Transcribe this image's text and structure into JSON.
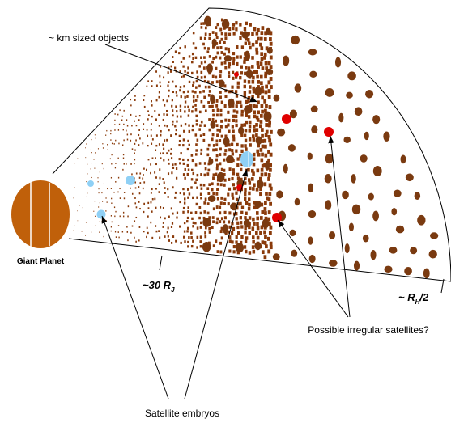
{
  "labels": {
    "km_objects": "~ km sized objects",
    "planet": "Giant Planet",
    "distance_inner": {
      "text": "~30 R",
      "sub": "J"
    },
    "distance_outer": {
      "text": "~ R",
      "sub": "H",
      "suffix": "/2"
    },
    "irregular": "Possible irregular satellites?",
    "embryos": "Satellite embryos"
  }
}
